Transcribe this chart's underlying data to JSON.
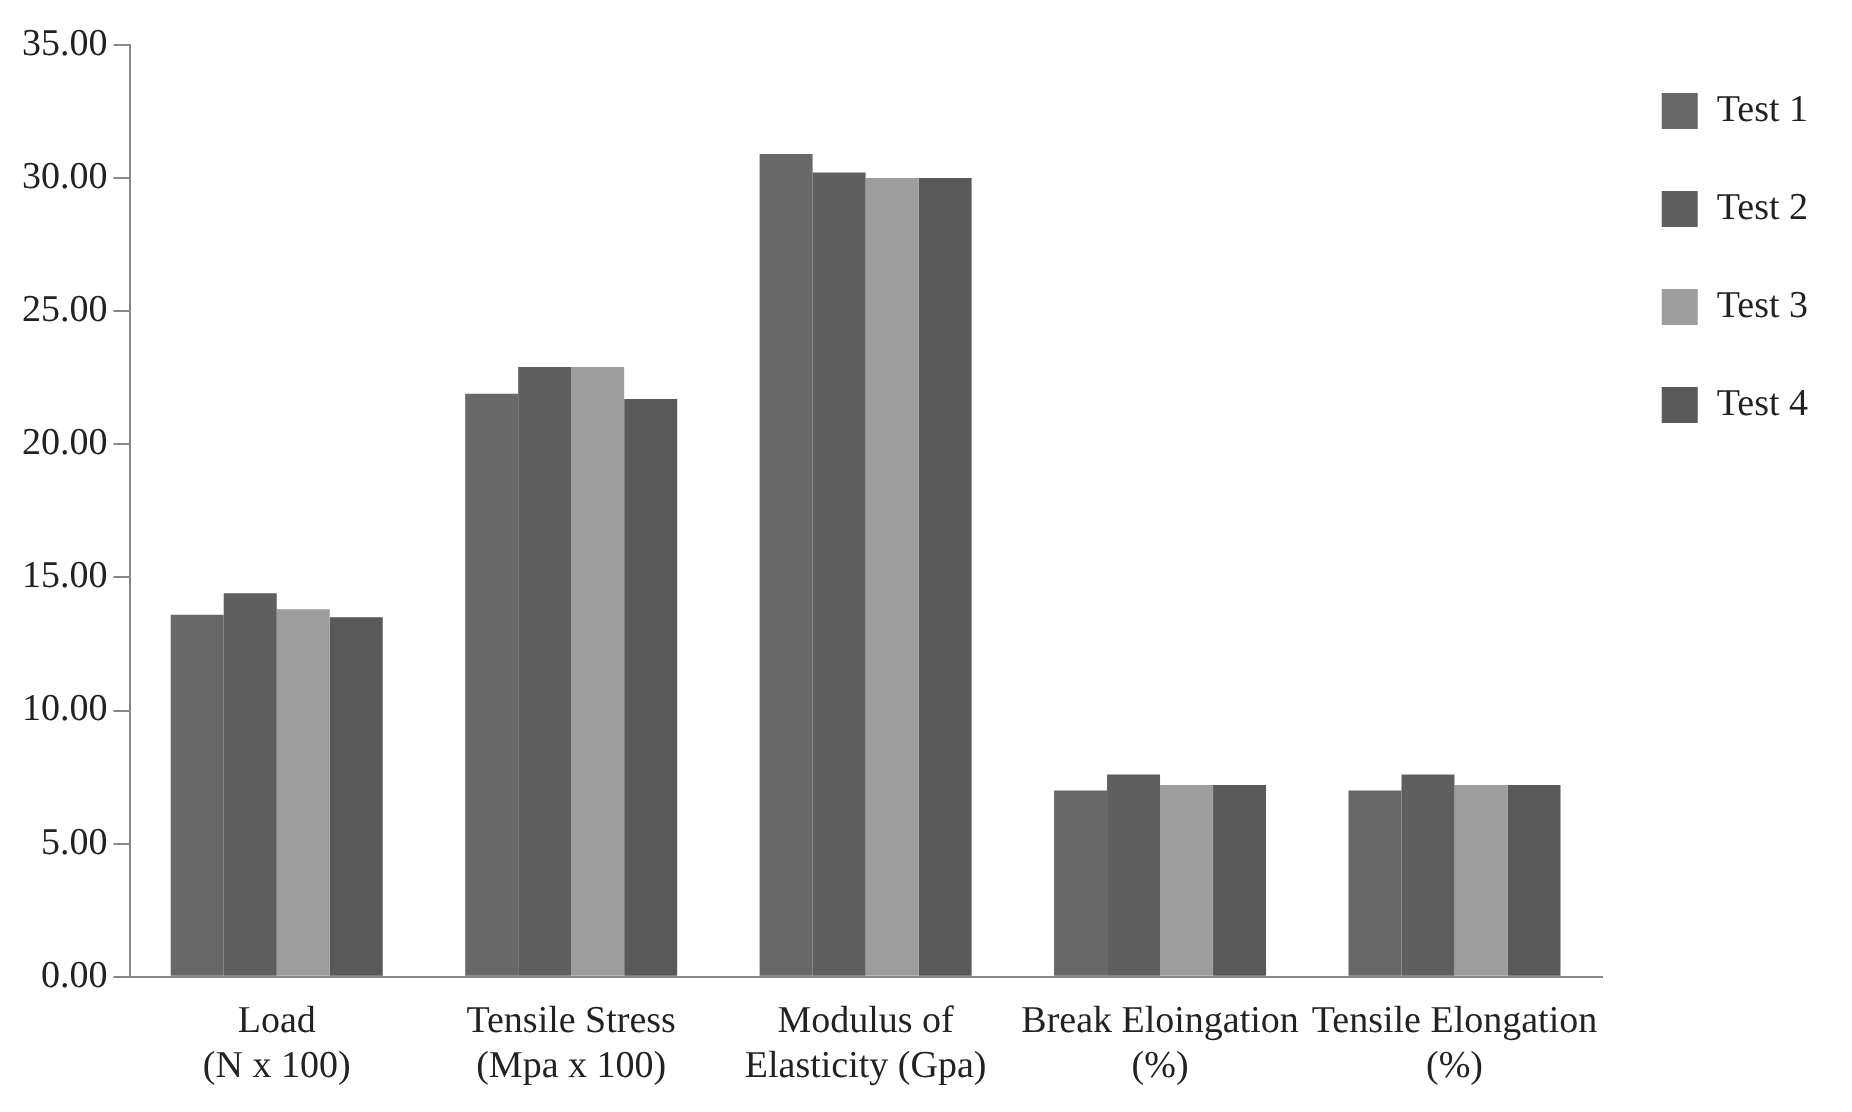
{
  "chart_data": {
    "type": "bar",
    "categories": [
      "Load\n(N x 100)",
      "Tensile Stress\n(Mpa x 100)",
      "Modulus of\nElasticity (Gpa)",
      "Break Eloingation\n(%)",
      "Tensile Elongation\n(%)"
    ],
    "series": [
      {
        "name": "Test 1",
        "color": "#686868",
        "values": [
          13.6,
          21.9,
          30.9,
          7.0,
          7.0
        ]
      },
      {
        "name": "Test 2",
        "color": "#5f5f5f",
        "values": [
          14.4,
          22.9,
          30.2,
          7.6,
          7.6
        ]
      },
      {
        "name": "Test 3",
        "color": "#9d9d9d",
        "values": [
          13.8,
          22.9,
          30.0,
          7.2,
          7.2
        ]
      },
      {
        "name": "Test 4",
        "color": "#595959",
        "values": [
          13.5,
          21.7,
          30.0,
          7.2,
          7.2
        ]
      }
    ],
    "ylim": [
      0,
      35
    ],
    "yticks": [
      {
        "value": 0,
        "label": "0.00"
      },
      {
        "value": 5,
        "label": "5.00"
      },
      {
        "value": 10,
        "label": "10.00"
      },
      {
        "value": 15,
        "label": "15.00"
      },
      {
        "value": 20,
        "label": "20.00"
      },
      {
        "value": 25,
        "label": "25.00"
      },
      {
        "value": 30,
        "label": "30.00"
      },
      {
        "value": 35,
        "label": "35.00"
      }
    ],
    "grid": false,
    "legend": "top right"
  }
}
